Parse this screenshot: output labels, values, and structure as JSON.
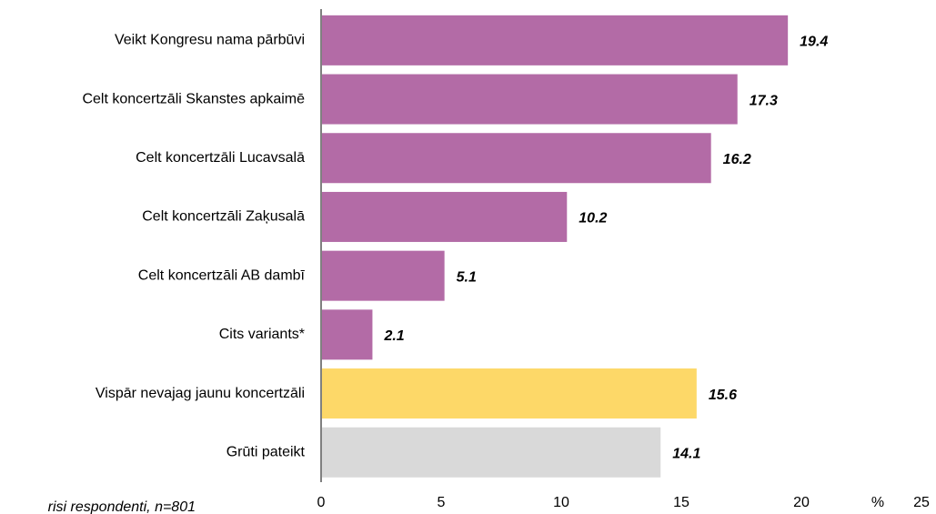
{
  "chart_data": {
    "type": "hbar",
    "categories": [
      "Veikt Kongresu nama pārbūvi",
      "Celt koncertzāli Skanstes apkaimē",
      "Celt koncertzāli Lucavsalā",
      "Celt koncertzāli Zaķusalā",
      "Celt koncertzāli AB dambī",
      "Cits variants*",
      "Vispār nevajag jaunu koncertzāli",
      "Grūti pateikt"
    ],
    "values": [
      19.4,
      17.3,
      16.2,
      10.2,
      5.1,
      2.1,
      15.6,
      14.1
    ],
    "colors": [
      "#b36ba6",
      "#b36ba6",
      "#b36ba6",
      "#b36ba6",
      "#b36ba6",
      "#b36ba6",
      "#fdd868",
      "#d9d9d9"
    ],
    "xlim": [
      0,
      25
    ],
    "xticks": [
      0,
      5,
      10,
      15,
      20,
      25
    ],
    "x_label": "%",
    "footnote": "risi respondenti, n=801"
  }
}
